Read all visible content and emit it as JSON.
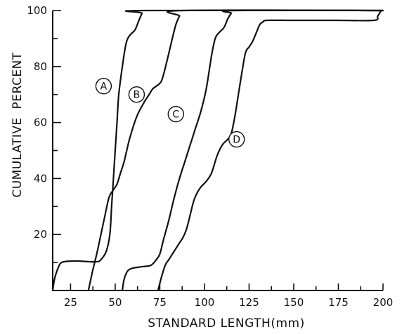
{
  "chart_data": {
    "type": "line",
    "title": "",
    "xlabel": "STANDARD LENGTH(mm)",
    "ylabel": "CUMULATIVE  PERCENT",
    "xlim": [
      15,
      200
    ],
    "ylim": [
      0,
      100
    ],
    "x_ticks_labeled": [
      25,
      50,
      75,
      100,
      125,
      150,
      175,
      200
    ],
    "y_ticks_labeled": [
      20,
      40,
      60,
      80,
      100
    ],
    "grid": false,
    "legend": "none",
    "series": [
      {
        "name": "A",
        "points": [
          [
            15,
            0
          ],
          [
            16,
            4
          ],
          [
            18,
            8
          ],
          [
            20,
            10
          ],
          [
            25,
            10.5
          ],
          [
            30,
            10.5
          ],
          [
            35,
            10.3
          ],
          [
            40,
            10.3
          ],
          [
            42,
            11
          ],
          [
            45,
            14
          ],
          [
            47,
            20
          ],
          [
            48,
            30
          ],
          [
            49,
            40
          ],
          [
            50,
            50
          ],
          [
            51,
            60
          ],
          [
            52,
            70
          ],
          [
            54,
            80
          ],
          [
            56,
            88
          ],
          [
            58,
            91
          ],
          [
            61,
            93
          ],
          [
            63,
            96
          ],
          [
            65,
            99
          ],
          [
            66,
            100
          ],
          [
            200,
            100
          ]
        ]
      },
      {
        "name": "B",
        "points": [
          [
            35,
            0
          ],
          [
            37,
            6
          ],
          [
            40,
            14
          ],
          [
            42,
            20
          ],
          [
            44,
            26
          ],
          [
            46,
            32
          ],
          [
            47,
            34
          ],
          [
            49,
            36
          ],
          [
            51,
            38
          ],
          [
            53,
            42
          ],
          [
            55,
            46
          ],
          [
            58,
            54
          ],
          [
            62,
            62
          ],
          [
            66,
            67
          ],
          [
            69,
            70
          ],
          [
            71,
            72
          ],
          [
            73,
            73
          ],
          [
            76,
            75
          ],
          [
            79,
            82
          ],
          [
            82,
            90
          ],
          [
            84,
            95
          ],
          [
            86,
            98
          ],
          [
            88,
            100
          ],
          [
            200,
            100
          ]
        ]
      },
      {
        "name": "C",
        "points": [
          [
            54,
            0
          ],
          [
            55,
            4
          ],
          [
            57,
            7
          ],
          [
            60,
            8
          ],
          [
            65,
            8.5
          ],
          [
            70,
            9
          ],
          [
            73,
            11
          ],
          [
            75,
            13
          ],
          [
            77,
            18
          ],
          [
            80,
            25
          ],
          [
            83,
            33
          ],
          [
            86,
            40
          ],
          [
            89,
            46
          ],
          [
            92,
            52
          ],
          [
            95,
            58
          ],
          [
            98,
            64
          ],
          [
            101,
            72
          ],
          [
            104,
            84
          ],
          [
            106,
            90
          ],
          [
            108,
            92
          ],
          [
            111,
            94
          ],
          [
            113,
            97
          ],
          [
            115,
            99
          ],
          [
            117,
            100
          ],
          [
            200,
            100
          ]
        ]
      },
      {
        "name": "D",
        "points": [
          [
            74,
            0
          ],
          [
            76,
            5
          ],
          [
            78,
            9
          ],
          [
            80,
            11
          ],
          [
            83,
            14
          ],
          [
            86,
            17
          ],
          [
            88,
            19
          ],
          [
            90,
            22
          ],
          [
            92,
            27
          ],
          [
            94,
            32
          ],
          [
            96,
            35
          ],
          [
            98,
            37
          ],
          [
            101,
            39
          ],
          [
            104,
            42
          ],
          [
            107,
            48
          ],
          [
            110,
            52
          ],
          [
            113,
            54
          ],
          [
            115,
            56
          ],
          [
            117,
            62
          ],
          [
            119,
            70
          ],
          [
            121,
            78
          ],
          [
            123,
            85
          ],
          [
            125,
            87
          ],
          [
            127,
            89
          ],
          [
            129,
            92
          ],
          [
            131,
            95
          ],
          [
            133,
            96
          ],
          [
            135,
            96.5
          ],
          [
            150,
            96.5
          ],
          [
            175,
            96.5
          ],
          [
            195,
            96.5
          ],
          [
            197,
            98
          ],
          [
            199,
            100
          ]
        ]
      }
    ],
    "annotations": [
      {
        "text": "A",
        "x": 43.5,
        "y": 73
      },
      {
        "text": "B",
        "x": 62,
        "y": 70
      },
      {
        "text": "C",
        "x": 84,
        "y": 63
      },
      {
        "text": "D",
        "x": 118,
        "y": 54
      }
    ]
  }
}
